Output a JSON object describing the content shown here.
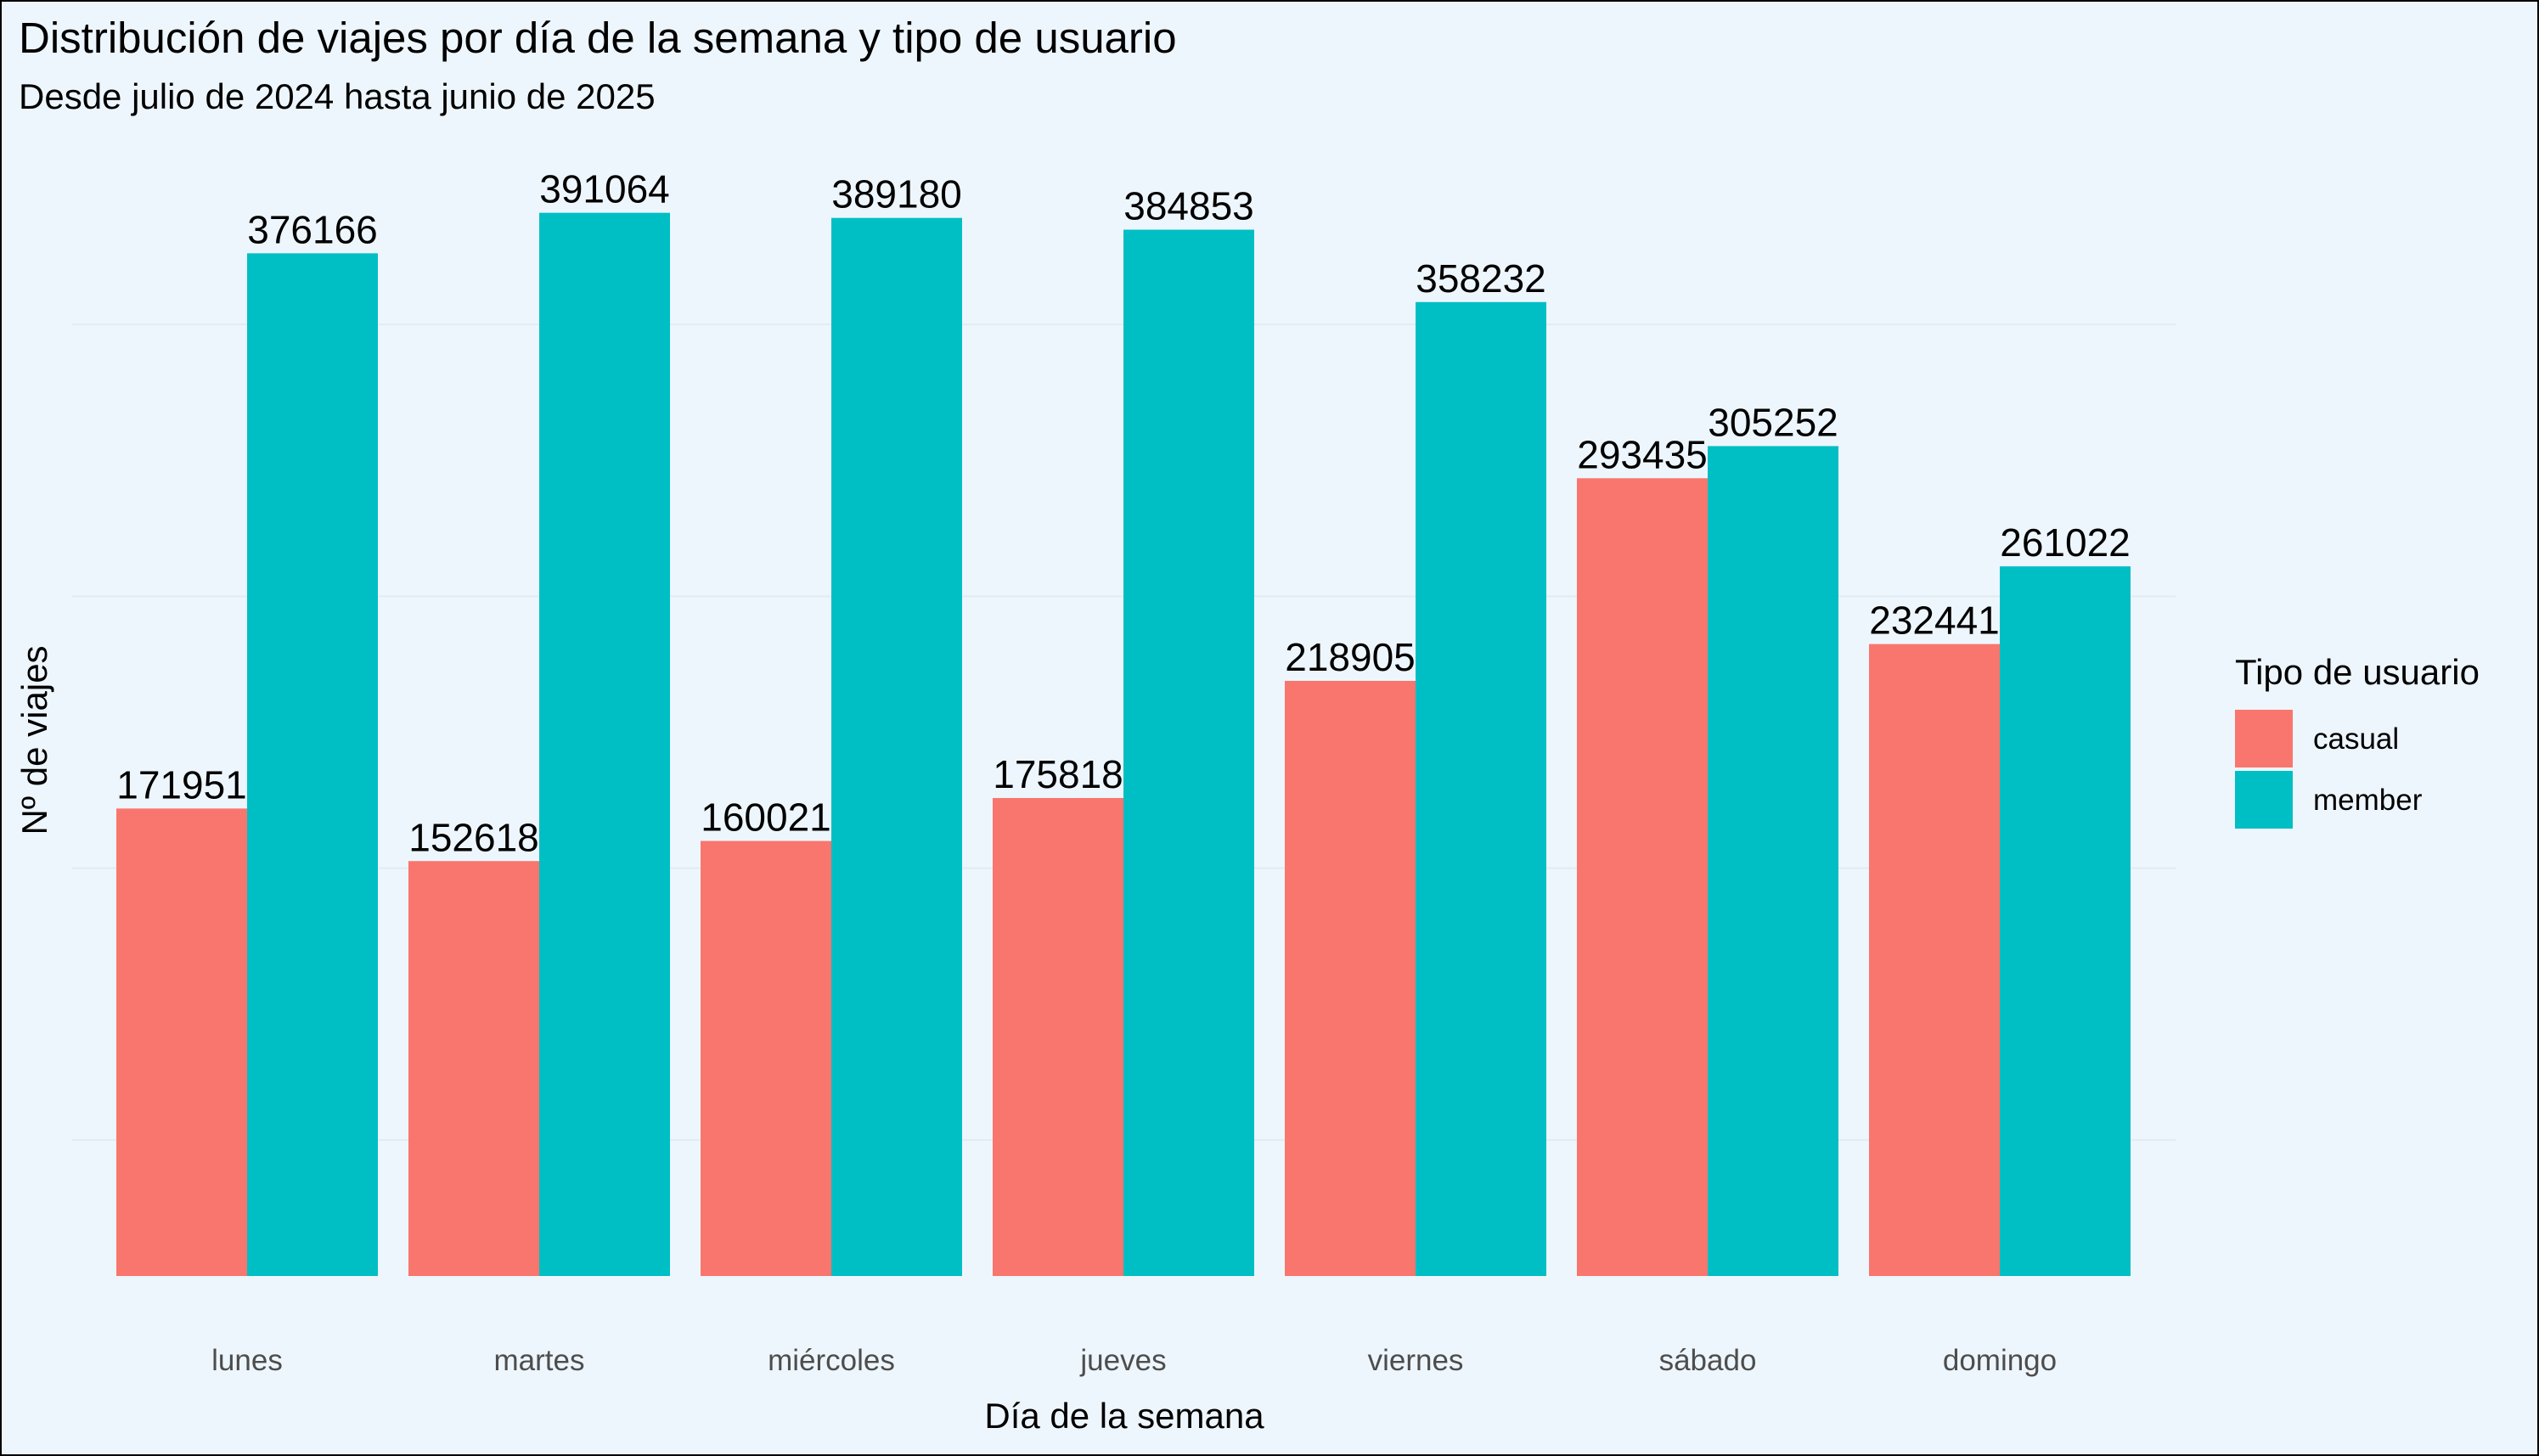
{
  "chart_data": {
    "type": "bar",
    "title": "Distribución de viajes por día de la semana y tipo de usuario",
    "subtitle": "Desde julio de 2024 hasta junio de 2025",
    "xlabel": "Día de la semana",
    "ylabel": "Nº de viajes",
    "categories": [
      "lunes",
      "martes",
      "miércoles",
      "jueves",
      "viernes",
      "sábado",
      "domingo"
    ],
    "series": [
      {
        "name": "casual",
        "color": "#f8766d",
        "values": [
          171951,
          152618,
          160021,
          175818,
          218905,
          293435,
          232441
        ]
      },
      {
        "name": "member",
        "color": "#00bfc4",
        "values": [
          376166,
          391064,
          389180,
          384853,
          358232,
          305252,
          261022
        ]
      }
    ],
    "ylim": [
      0,
      410000
    ],
    "y_gridlines": [
      50000,
      150000,
      250000,
      350000
    ],
    "y_tick_labels_shown": false,
    "grid": true,
    "legend": {
      "title": "Tipo de usuario",
      "position": "right"
    }
  }
}
